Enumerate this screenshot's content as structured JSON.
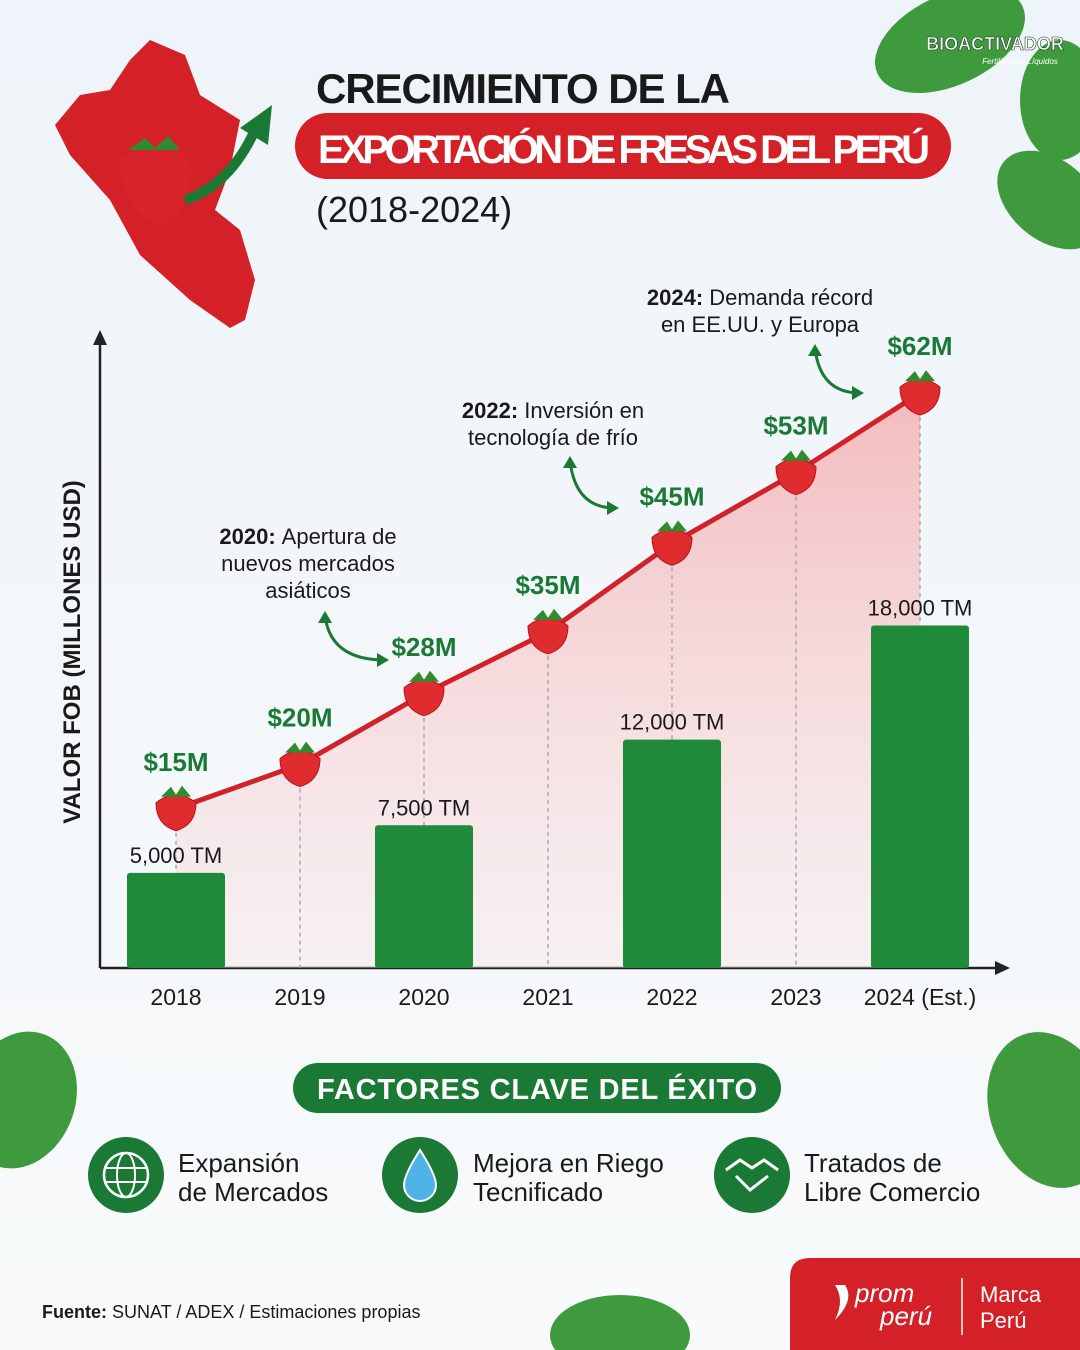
{
  "brand": {
    "name": "BIOACTIVADOR",
    "tagline": "Fertilizantes Líquidos"
  },
  "header": {
    "title_line1": "CRECIMIENTO DE LA",
    "title_line2": "EXPORTACIÓN DE FRESAS DEL PERÚ",
    "subtitle": "(2018-2024)"
  },
  "chart_data": {
    "type": "bar-line",
    "y_axis_label": "VALOR FOB (MILLONES USD)",
    "categories": [
      "2018",
      "2019",
      "2020",
      "2021",
      "2022",
      "2023",
      "2024 (Est.)"
    ],
    "ylim": [
      -3,
      68
    ],
    "y2lim": [
      0,
      33000
    ],
    "series": [
      {
        "type": "bar",
        "axis": "y2",
        "color": "#1e8a3a",
        "values": [
          5000,
          null,
          7500,
          null,
          12000,
          null,
          18000
        ],
        "value_labels": [
          "5,000 TM",
          null,
          "7,500 TM",
          null,
          "12,000 TM",
          null,
          "18,000 TM"
        ]
      },
      {
        "type": "line",
        "color": "#d0222a",
        "label_color": "#1a7a35",
        "values": [
          15,
          20,
          28,
          35,
          45,
          53,
          62
        ],
        "value_labels": [
          "$15M",
          "$20M",
          "$28M",
          "$35M",
          "$45M",
          "$53M",
          "$62M"
        ]
      }
    ],
    "annotations": [
      {
        "year": "2020:",
        "lines": [
          "Apertura de",
          "nuevos mercados",
          "asiáticos"
        ]
      },
      {
        "year": "2022:",
        "lines": [
          "Inversión en",
          "tecnología de frío"
        ]
      },
      {
        "year": "2024:",
        "lines": [
          "Demanda récord",
          "en EE.UU. y Europa"
        ]
      }
    ]
  },
  "factors": {
    "title": "FACTORES CLAVE DEL ÉXITO",
    "items": [
      {
        "lines": [
          "Expansión",
          "de Mercados"
        ]
      },
      {
        "lines": [
          "Mejora en Riego",
          "Tecnificado"
        ]
      },
      {
        "lines": [
          "Tratados de",
          "Libre Comercio"
        ]
      }
    ]
  },
  "source": {
    "label": "Fuente:",
    "text": "SUNAT / ADEX / Estimaciones propias"
  },
  "footer_logos": {
    "prom_line1": "prom",
    "prom_line2": "perú",
    "marca_line1": "Marca",
    "marca_line2": "Perú"
  }
}
